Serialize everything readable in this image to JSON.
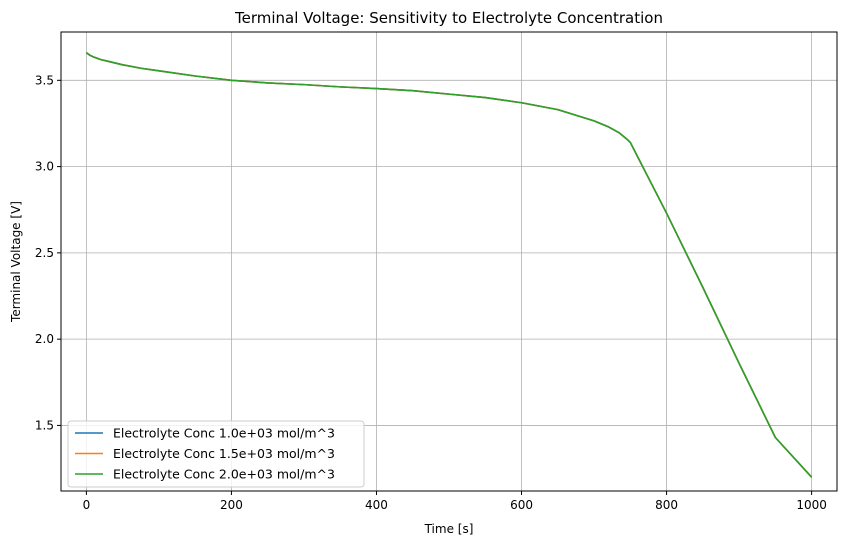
{
  "chart_data": {
    "type": "line",
    "title": "Terminal Voltage: Sensitivity to Electrolyte Concentration",
    "xlabel": "Time [s]",
    "ylabel": "Terminal Voltage [V]",
    "xlim": [
      -35,
      1035
    ],
    "ylim": [
      1.12,
      3.78
    ],
    "xticks": [
      0,
      200,
      400,
      600,
      800,
      1000
    ],
    "xtick_labels": [
      "0",
      "200",
      "400",
      "600",
      "800",
      "1000"
    ],
    "yticks": [
      1.5,
      2.0,
      2.5,
      3.0,
      3.5
    ],
    "ytick_labels": [
      "1.5",
      "2.0",
      "2.5",
      "3.0",
      "3.5"
    ],
    "grid": true,
    "legend_position": "lower-left",
    "x": [
      0,
      5,
      10,
      20,
      30,
      50,
      75,
      100,
      150,
      200,
      250,
      300,
      350,
      400,
      450,
      500,
      550,
      600,
      650,
      700,
      720,
      735,
      745,
      750,
      800,
      850,
      900,
      950,
      1000
    ],
    "series": [
      {
        "name": "Electrolyte Conc 1.0e+03 mol/m^3",
        "color": "#1f77b4",
        "y": [
          3.66,
          3.645,
          3.635,
          3.62,
          3.61,
          3.59,
          3.57,
          3.555,
          3.525,
          3.5,
          3.485,
          3.475,
          3.462,
          3.452,
          3.44,
          3.42,
          3.4,
          3.37,
          3.33,
          3.265,
          3.23,
          3.195,
          3.16,
          3.14,
          2.73,
          2.3,
          1.86,
          1.43,
          1.2
        ]
      },
      {
        "name": "Electrolyte Conc 1.5e+03 mol/m^3",
        "color": "#ff7f0e",
        "y": [
          3.66,
          3.645,
          3.635,
          3.62,
          3.61,
          3.59,
          3.57,
          3.555,
          3.525,
          3.5,
          3.485,
          3.475,
          3.462,
          3.452,
          3.44,
          3.42,
          3.4,
          3.37,
          3.33,
          3.265,
          3.23,
          3.195,
          3.16,
          3.14,
          2.73,
          2.3,
          1.86,
          1.43,
          1.2
        ]
      },
      {
        "name": "Electrolyte Conc 2.0e+03 mol/m^3",
        "color": "#2ca02c",
        "y": [
          3.66,
          3.645,
          3.635,
          3.62,
          3.61,
          3.59,
          3.57,
          3.555,
          3.525,
          3.5,
          3.485,
          3.475,
          3.462,
          3.452,
          3.44,
          3.42,
          3.4,
          3.37,
          3.33,
          3.265,
          3.23,
          3.195,
          3.16,
          3.14,
          2.73,
          2.3,
          1.86,
          1.43,
          1.2
        ]
      }
    ]
  }
}
